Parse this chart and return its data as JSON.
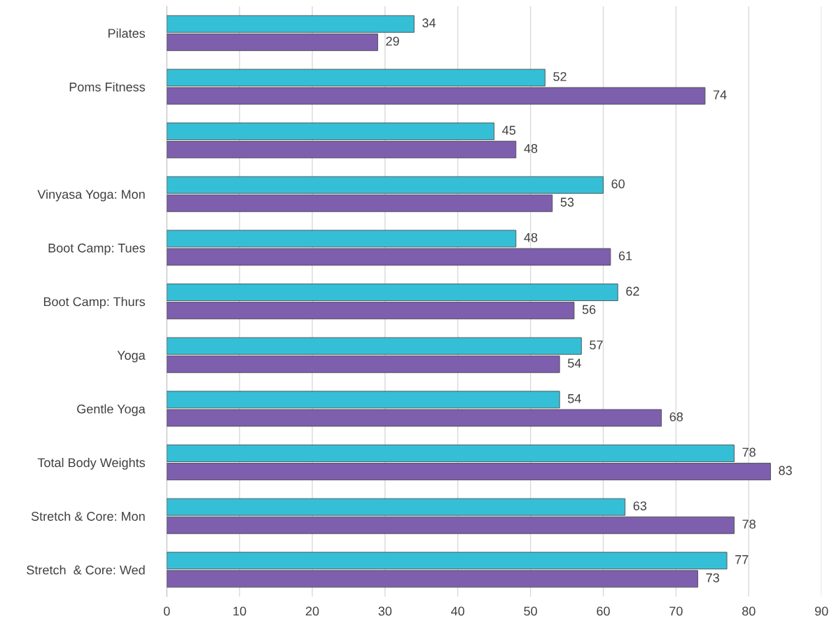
{
  "chart_data": {
    "type": "bar",
    "orientation": "horizontal",
    "categories": [
      "Pilates",
      "Poms Fitness",
      null,
      "Vinyasa Yoga: Mon",
      "Boot Camp: Tues",
      "Boot Camp: Thurs",
      "Yoga",
      "Gentle Yoga",
      "Total Body Weights",
      "Stretch & Core: Mon",
      "Stretch  & Core: Wed"
    ],
    "series": [
      {
        "color": "#35bfd6",
        "values": [
          34,
          52,
          45,
          60,
          48,
          62,
          57,
          54,
          78,
          63,
          77
        ]
      },
      {
        "color": "#7d5fae",
        "values": [
          29,
          74,
          48,
          53,
          61,
          56,
          54,
          68,
          83,
          78,
          73
        ]
      }
    ],
    "xlim": [
      0,
      90
    ],
    "xticks": [
      0,
      10,
      20,
      30,
      40,
      50,
      60,
      70,
      80,
      90
    ],
    "grid": "x",
    "data_labels": true,
    "legend": false
  }
}
